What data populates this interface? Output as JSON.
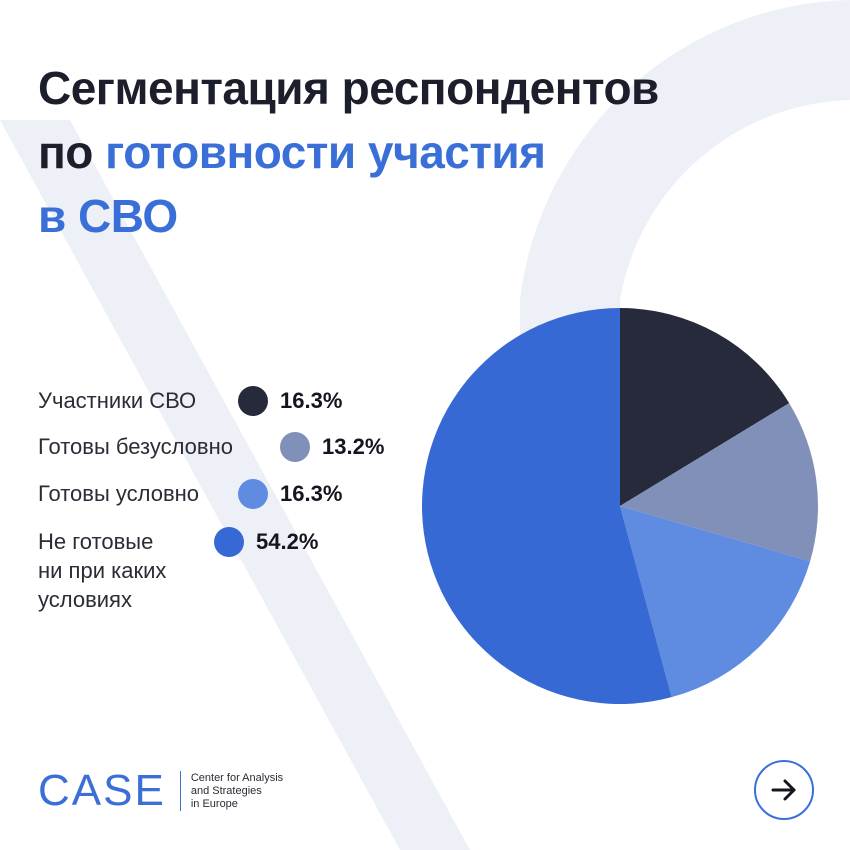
{
  "title": {
    "line1": "Сегментация респондентов",
    "line2_plain": "по ",
    "line2_accent": "готовности участия",
    "line3": "в СВО"
  },
  "chart_data": {
    "type": "pie",
    "title": "Сегментация респондентов по готовности участия в СВО",
    "start_angle_deg": 0,
    "direction": "clockwise",
    "slices": [
      {
        "label": "Участники СВО",
        "value": 16.3,
        "display": "16.3%",
        "color": "#262a3a"
      },
      {
        "label": "Готовы безусловно",
        "value": 13.2,
        "display": "13.2%",
        "color": "#8090b8"
      },
      {
        "label": "Готовы условно",
        "value": 16.3,
        "display": "16.3%",
        "color": "#5f8ce0"
      },
      {
        "label": "Не готовые\nни при каких\nусловиях",
        "value": 54.2,
        "display": "54.2%",
        "color": "#3669d4"
      }
    ]
  },
  "footer": {
    "logo": "CASE",
    "org_name": "Center for Analysis\nand Strategies\nin Europe"
  },
  "nav": {
    "next_icon": "arrow-right-icon"
  },
  "colors": {
    "accent": "#3a6fd8",
    "deco": "#eef0f8"
  }
}
